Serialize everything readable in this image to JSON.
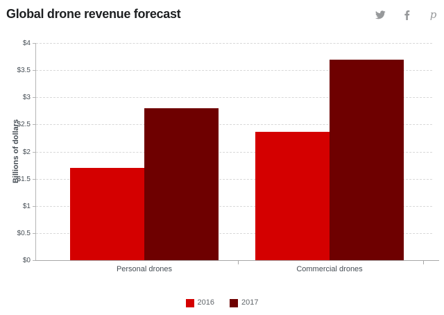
{
  "header": {
    "title": "Global drone revenue forecast",
    "share_icons": [
      {
        "name": "twitter-icon"
      },
      {
        "name": "facebook-icon"
      },
      {
        "name": "pinterest-icon"
      }
    ]
  },
  "chart_data": {
    "type": "bar",
    "title": "Global drone revenue forecast",
    "categories": [
      "Personal drones",
      "Commercial drones"
    ],
    "series": [
      {
        "name": "2016",
        "color": "#d40000",
        "values": [
          1.7,
          2.36
        ]
      },
      {
        "name": "2017",
        "color": "#6e0000",
        "values": [
          2.8,
          3.69
        ]
      }
    ],
    "xlabel": "",
    "ylabel": "Billions of dollars",
    "ylim": [
      0,
      4
    ],
    "ytick_step": 0.5,
    "ytick_labels": [
      "$0",
      "$0.5",
      "$1",
      "$1.5",
      "$2",
      "$2.5",
      "$3",
      "$3.5",
      "$4"
    ],
    "grid": "horizontal-dashed",
    "legend_position": "bottom"
  },
  "colors": {
    "series_2016": "#d40000",
    "series_2017": "#6e0000",
    "axis_text": "#454d54",
    "title_text": "#1d1f21",
    "legend_text": "#606569",
    "gridline": "#d8d8d8",
    "axis_line": "#a6a6a6",
    "icon_gray": "#97999b"
  }
}
